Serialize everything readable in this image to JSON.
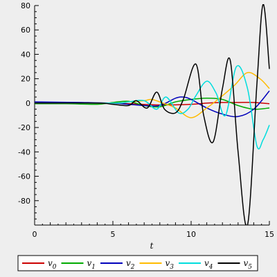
{
  "chart_data": {
    "type": "line",
    "xlabel": "t",
    "ylabel": "",
    "xlim": [
      0,
      15
    ],
    "ylim": [
      -100,
      80
    ],
    "xticks": [
      0,
      5,
      10,
      15
    ],
    "yticks": [
      80,
      60,
      40,
      20,
      0,
      -20,
      -40,
      -60,
      -80
    ],
    "grid": false,
    "legend_position": "bottom",
    "series": [
      {
        "name": "v",
        "subscript": "0",
        "color": "#cc0000",
        "x": [
          0,
          2,
          4,
          6,
          8,
          10,
          11,
          12,
          13,
          14,
          15
        ],
        "y": [
          0.5,
          0.3,
          0,
          -0.5,
          -1.5,
          -1,
          0,
          0.5,
          0.5,
          0.5,
          -0.5
        ]
      },
      {
        "name": "v",
        "subscript": "1",
        "color": "#00aa00",
        "x": [
          0,
          2,
          4,
          5,
          6,
          7,
          8,
          9,
          10,
          11,
          12,
          13,
          14,
          15
        ],
        "y": [
          -0.5,
          -0.5,
          -1,
          0.5,
          1.5,
          -2,
          -3,
          1,
          3,
          4,
          3,
          -2,
          -5,
          -4
        ]
      },
      {
        "name": "v",
        "subscript": "2",
        "color": "#0000bb",
        "x": [
          0,
          3,
          5,
          6,
          7,
          8,
          9,
          9.5,
          10,
          11,
          12,
          13,
          14,
          15
        ],
        "y": [
          1,
          0.5,
          0,
          -1,
          -2,
          -2,
          4,
          5,
          3,
          -4,
          -9,
          -11,
          -5,
          10
        ]
      },
      {
        "name": "v",
        "subscript": "3",
        "color": "#ffbb00",
        "x": [
          0,
          5,
          6,
          7,
          7.5,
          8.2,
          9,
          10,
          11,
          12,
          12.8,
          13.6,
          14.4,
          15
        ],
        "y": [
          0,
          0,
          1,
          2,
          3,
          0,
          -4,
          -12,
          -4,
          6,
          15,
          25,
          20,
          12
        ]
      },
      {
        "name": "v",
        "subscript": "4",
        "color": "#00dddd",
        "x": [
          0,
          5,
          6,
          7,
          7.8,
          8.4,
          9.2,
          9.8,
          10.3,
          11,
          11.6,
          12.2,
          12.9,
          13.6,
          14.2,
          14.6,
          15
        ],
        "y": [
          0,
          0,
          1,
          2,
          -5,
          5,
          -8,
          -5,
          6,
          18,
          8,
          -10,
          30,
          12,
          -35,
          -30,
          -18
        ]
      },
      {
        "name": "v",
        "subscript": "5",
        "color": "#000000",
        "x": [
          0,
          4,
          5,
          6,
          6.5,
          7.2,
          7.8,
          8.3,
          9.0,
          9.5,
          10.3,
          10.8,
          11.4,
          12.0,
          12.5,
          13.0,
          13.6,
          14.2,
          14.6,
          15
        ],
        "y": [
          0,
          0,
          -1,
          -2,
          2,
          -4,
          9,
          -5,
          -8,
          3,
          32,
          -10,
          -32,
          12,
          35,
          -40,
          -100,
          15,
          81,
          28
        ]
      }
    ]
  }
}
